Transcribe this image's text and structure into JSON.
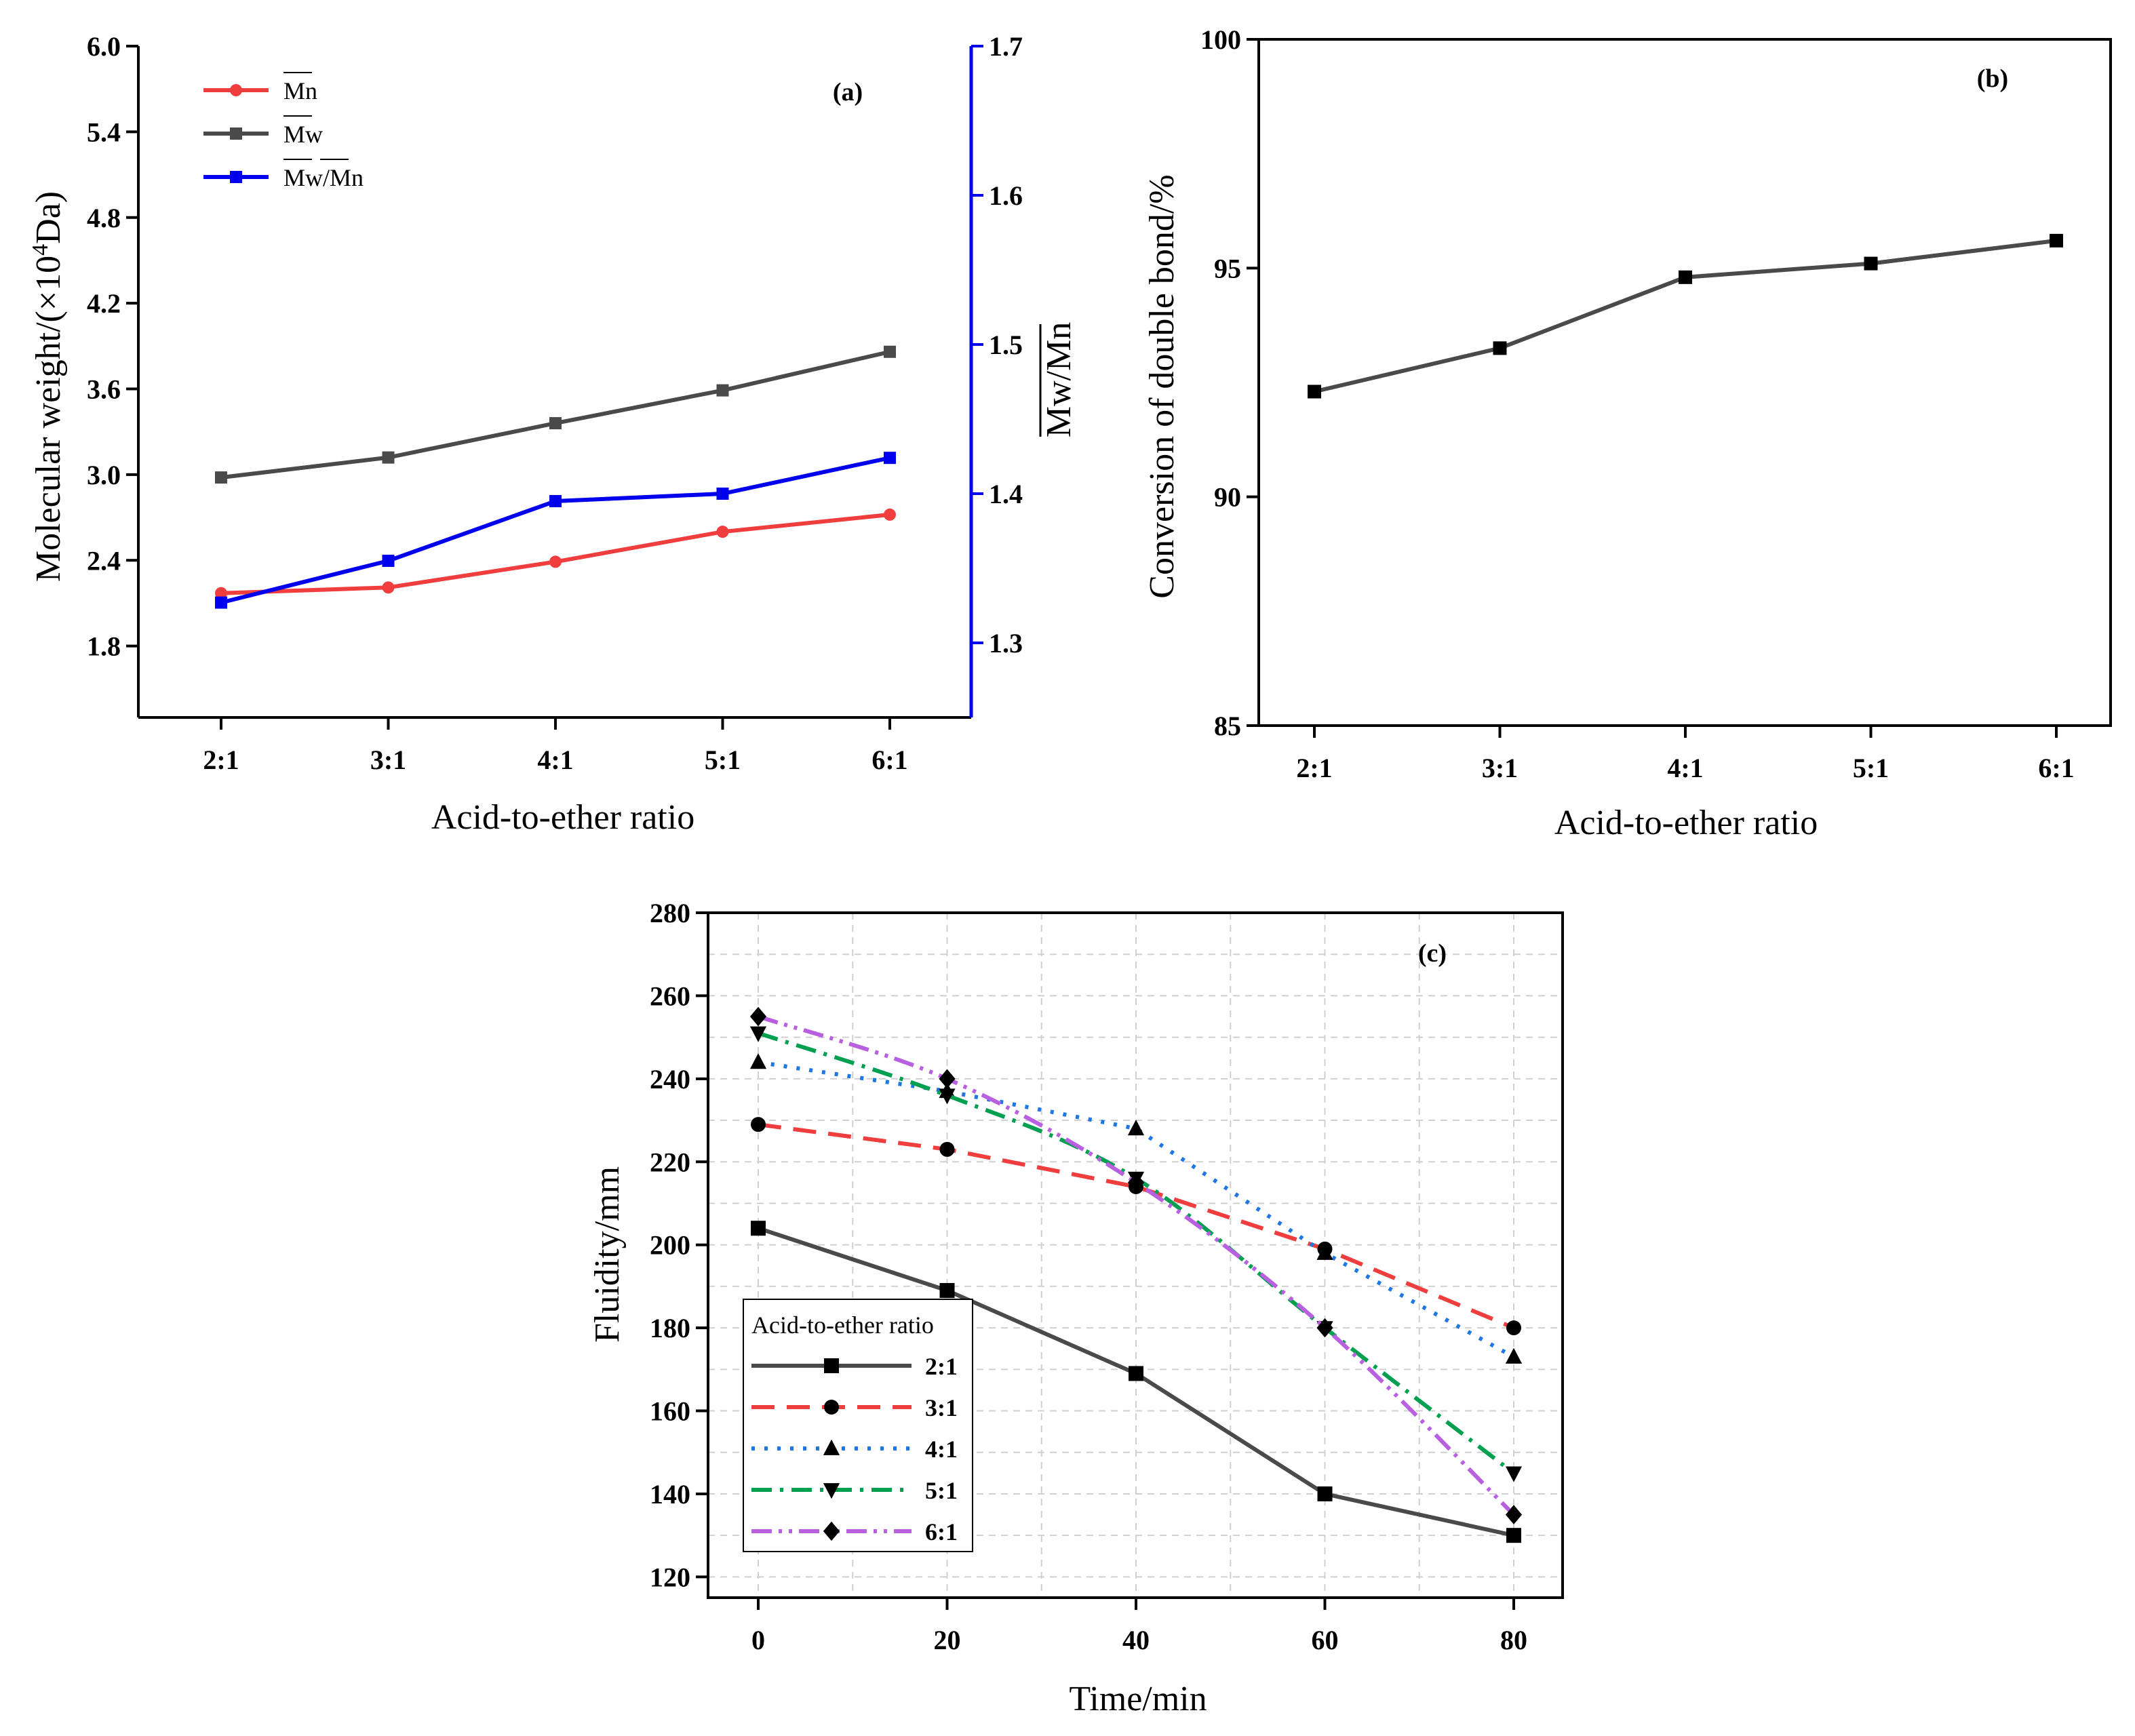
{
  "colors": {
    "red": "#f03e3e",
    "dark_gray": "#4a4a4a",
    "blue": "#0000ee",
    "sky_blue": "#1f77e4",
    "green": "#00a050",
    "violet": "#b860e0",
    "black": "#000000"
  },
  "chart_data": [
    {
      "type": "line",
      "panel": "(a)",
      "xlabel": "Acid-to-ether ratio",
      "ylabel_left": "Molecular weight/(×10",
      "ylabel_left_sup": "4",
      "ylabel_left_tail": "Da)",
      "ylabel_right": "Mw/Mn",
      "categories": [
        "2:1",
        "3:1",
        "4:1",
        "5:1",
        "6:1"
      ],
      "y_left_lim": [
        1.3,
        6.0
      ],
      "y_left_ticks": [
        "1.8",
        "2.4",
        "3.0",
        "3.6",
        "4.2",
        "4.8",
        "5.4",
        "6.0"
      ],
      "y_right_lim": [
        1.25,
        1.7
      ],
      "y_right_ticks": [
        "1.3",
        "1.4",
        "1.5",
        "1.6",
        "1.7"
      ],
      "legend_placement": "top-left",
      "series": [
        {
          "name": "Mn",
          "axis": "left",
          "marker": "circle",
          "color": "#f03e3e",
          "values": [
            2.17,
            2.21,
            2.39,
            2.6,
            2.72
          ]
        },
        {
          "name": "Mw",
          "axis": "left",
          "marker": "square",
          "color": "#4a4a4a",
          "values": [
            2.98,
            3.12,
            3.36,
            3.59,
            3.86
          ]
        },
        {
          "name": "Mw/Mn",
          "axis": "right",
          "marker": "square",
          "color": "#0000ee",
          "values": [
            1.327,
            1.355,
            1.395,
            1.4,
            1.424
          ]
        }
      ]
    },
    {
      "type": "line",
      "panel": "(b)",
      "xlabel": "Acid-to-ether ratio",
      "ylabel": "Conversion of double bond/%",
      "categories": [
        "2:1",
        "3:1",
        "4:1",
        "5:1",
        "6:1"
      ],
      "ylim": [
        85,
        100
      ],
      "y_ticks": [
        "85",
        "90",
        "95",
        "100"
      ],
      "series": [
        {
          "name": "",
          "marker": "square",
          "color": "#4a4a4a",
          "values": [
            92.3,
            93.25,
            94.8,
            95.1,
            95.6
          ]
        }
      ]
    },
    {
      "type": "line",
      "panel": "(c)",
      "xlabel": "Time/min",
      "ylabel": "Fluidity/mm",
      "x": [
        0,
        20,
        40,
        60,
        80
      ],
      "xlim": [
        -5,
        85
      ],
      "x_ticks": [
        "0",
        "20",
        "40",
        "60",
        "80"
      ],
      "ylim": [
        115,
        280
      ],
      "y_ticks": [
        "120",
        "140",
        "160",
        "180",
        "200",
        "220",
        "240",
        "260",
        "280"
      ],
      "grid": true,
      "legend_title": "Acid-to-ether ratio",
      "legend_placement": "bottom-left",
      "series": [
        {
          "name": "2:1",
          "marker": "square",
          "dash": "solid",
          "color": "#4a4a4a",
          "values": [
            204,
            189,
            169,
            140,
            130
          ]
        },
        {
          "name": "3:1",
          "marker": "circle",
          "dash": "dash",
          "color": "#f03e3e",
          "values": [
            229,
            223,
            214,
            199,
            180
          ]
        },
        {
          "name": "4:1",
          "marker": "triangle-up",
          "dash": "dot",
          "color": "#1f77e4",
          "values": [
            244,
            237,
            228,
            198,
            173
          ]
        },
        {
          "name": "5:1",
          "marker": "triangle-down",
          "dash": "dashdot",
          "color": "#00a050",
          "values": [
            251,
            236,
            216,
            180,
            145
          ]
        },
        {
          "name": "6:1",
          "marker": "diamond",
          "dash": "dashdotdot",
          "color": "#b860e0",
          "values": [
            255,
            240,
            215,
            180,
            135
          ]
        }
      ]
    }
  ]
}
